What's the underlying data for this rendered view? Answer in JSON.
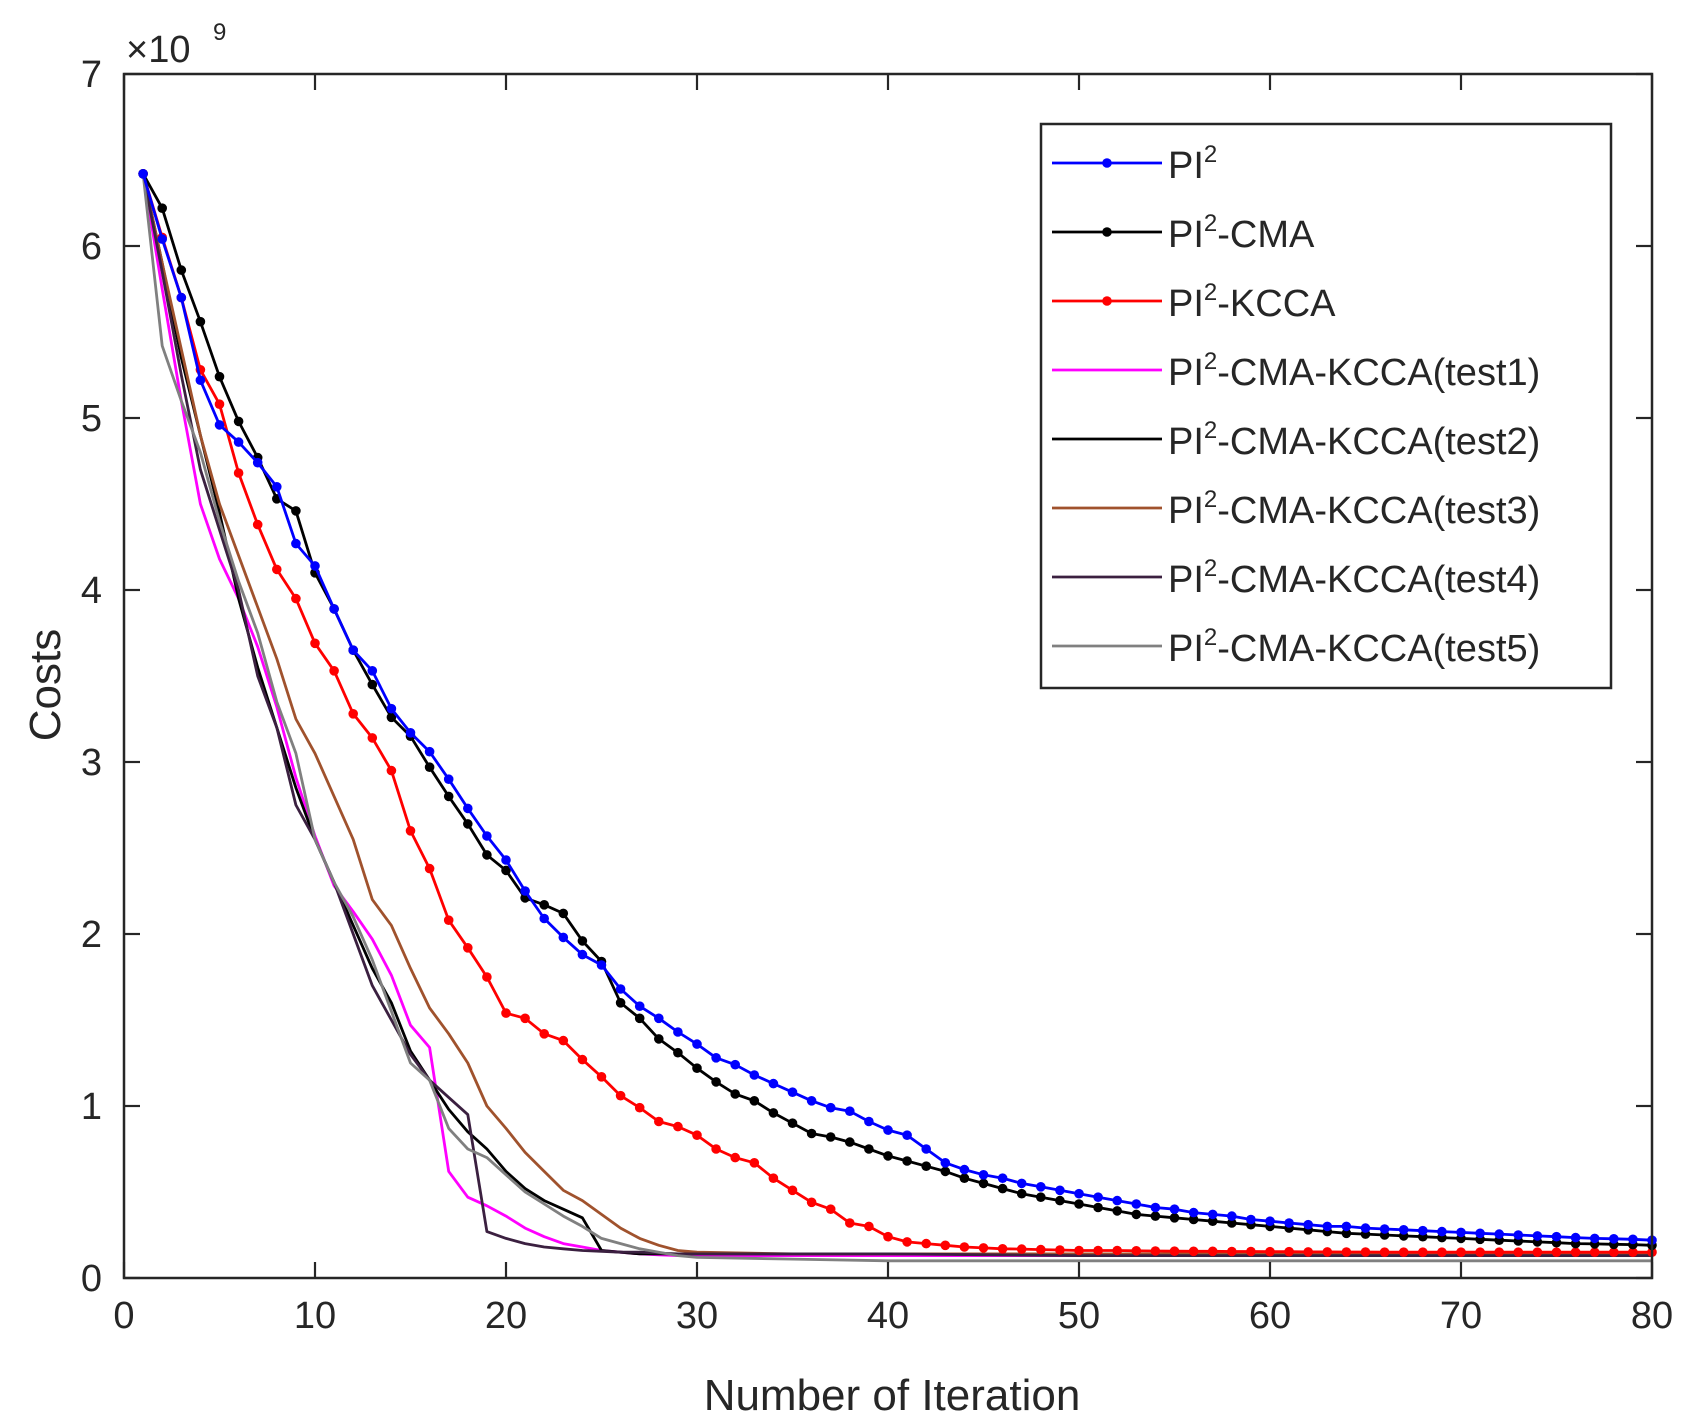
{
  "chart_data": {
    "type": "line",
    "title": "",
    "xlabel": "Number of Iteration",
    "ylabel": "Costs",
    "y_multiplier_label": "×10",
    "y_multiplier_exponent": "9",
    "xlim": [
      0,
      80
    ],
    "ylim": [
      0,
      7
    ],
    "xticks": [
      "0",
      "10",
      "20",
      "30",
      "40",
      "50",
      "60",
      "70",
      "80"
    ],
    "yticks": [
      "0",
      "1",
      "2",
      "3",
      "4",
      "5",
      "6",
      "7"
    ],
    "grid": false,
    "legend_position": "top-right",
    "units": "Costs ×10^9",
    "series": [
      {
        "name": "PI²-CMA-KCCA(test1)",
        "label_base": "PI",
        "label_sup": "2",
        "label_rest": "-CMA-KCCA(test1)",
        "color": "#ff00ff",
        "marker": "none",
        "x": [
          1,
          2,
          3,
          4,
          5,
          6,
          7,
          8,
          9,
          10,
          11,
          12,
          13,
          14,
          15,
          16,
          17,
          18,
          19,
          20,
          21,
          22,
          23,
          24,
          25,
          26,
          27,
          28,
          29,
          30,
          35,
          40,
          50,
          60,
          70,
          80
        ],
        "y": [
          6.42,
          5.75,
          5.1,
          4.5,
          4.18,
          3.95,
          3.67,
          3.32,
          2.91,
          2.57,
          2.28,
          2.13,
          1.97,
          1.76,
          1.47,
          1.34,
          0.62,
          0.47,
          0.42,
          0.36,
          0.29,
          0.24,
          0.2,
          0.18,
          0.16,
          0.15,
          0.14,
          0.135,
          0.13,
          0.13,
          0.13,
          0.13,
          0.13,
          0.13,
          0.13,
          0.13
        ]
      },
      {
        "name": "PI²-CMA-KCCA(test2)",
        "label_base": "PI",
        "label_sup": "2",
        "label_rest": "-CMA-KCCA(test2)",
        "color": "#000000",
        "marker": "none",
        "x": [
          1,
          2,
          3,
          4,
          5,
          6,
          7,
          8,
          9,
          10,
          11,
          12,
          13,
          14,
          15,
          16,
          17,
          18,
          19,
          20,
          21,
          22,
          23,
          24,
          25,
          26,
          27,
          28,
          29,
          30,
          35,
          40,
          50,
          60,
          70,
          80
        ],
        "y": [
          6.42,
          5.9,
          5.35,
          4.9,
          4.45,
          3.95,
          3.55,
          3.2,
          2.85,
          2.55,
          2.3,
          2.05,
          1.8,
          1.6,
          1.32,
          1.15,
          0.98,
          0.85,
          0.75,
          0.62,
          0.52,
          0.45,
          0.4,
          0.35,
          0.16,
          0.15,
          0.14,
          0.14,
          0.14,
          0.14,
          0.14,
          0.14,
          0.14,
          0.14,
          0.14,
          0.14
        ]
      },
      {
        "name": "PI²-CMA-KCCA(test3)",
        "label_base": "PI",
        "label_sup": "2",
        "label_rest": "-CMA-KCCA(test3)",
        "color": "#a0522d",
        "marker": "none",
        "x": [
          1,
          2,
          3,
          4,
          5,
          6,
          7,
          8,
          9,
          10,
          11,
          12,
          13,
          14,
          15,
          16,
          17,
          18,
          19,
          20,
          21,
          22,
          23,
          24,
          25,
          26,
          27,
          28,
          29,
          30,
          35,
          40,
          50,
          60,
          70,
          80
        ],
        "y": [
          6.42,
          5.9,
          5.4,
          4.9,
          4.5,
          4.2,
          3.9,
          3.6,
          3.25,
          3.05,
          2.8,
          2.55,
          2.2,
          2.05,
          1.8,
          1.57,
          1.42,
          1.25,
          1.0,
          0.87,
          0.73,
          0.62,
          0.51,
          0.45,
          0.37,
          0.29,
          0.23,
          0.19,
          0.16,
          0.15,
          0.14,
          0.14,
          0.14,
          0.14,
          0.14,
          0.14
        ]
      },
      {
        "name": "PI²-CMA-KCCA(test4)",
        "label_base": "PI",
        "label_sup": "2",
        "label_rest": "-CMA-KCCA(test4)",
        "color": "#3b2040",
        "marker": "none",
        "x": [
          1,
          2,
          3,
          4,
          5,
          6,
          7,
          8,
          9,
          10,
          11,
          12,
          13,
          14,
          15,
          16,
          17,
          18,
          19,
          20,
          21,
          22,
          23,
          24,
          25,
          26,
          27,
          28,
          29,
          30,
          35,
          40,
          50,
          60,
          70,
          80
        ],
        "y": [
          6.42,
          5.85,
          5.25,
          4.7,
          4.35,
          4.0,
          3.5,
          3.2,
          2.75,
          2.55,
          2.3,
          2.0,
          1.7,
          1.5,
          1.3,
          1.15,
          1.05,
          0.95,
          0.27,
          0.23,
          0.2,
          0.18,
          0.17,
          0.16,
          0.155,
          0.15,
          0.15,
          0.145,
          0.14,
          0.14,
          0.14,
          0.14,
          0.13,
          0.13,
          0.13,
          0.13
        ]
      },
      {
        "name": "PI²-CMA-KCCA(test5)",
        "label_base": "PI",
        "label_sup": "2",
        "label_rest": "-CMA-KCCA(test5)",
        "color": "#808080",
        "marker": "none",
        "x": [
          1,
          2,
          3,
          4,
          5,
          6,
          7,
          8,
          9,
          10,
          11,
          12,
          13,
          14,
          15,
          16,
          17,
          18,
          19,
          20,
          21,
          22,
          23,
          24,
          25,
          26,
          27,
          28,
          29,
          30,
          35,
          40,
          50,
          60,
          70,
          80
        ],
        "y": [
          6.42,
          5.42,
          5.1,
          4.8,
          4.4,
          4.05,
          3.75,
          3.35,
          3.05,
          2.55,
          2.3,
          2.1,
          1.85,
          1.55,
          1.25,
          1.15,
          0.87,
          0.75,
          0.7,
          0.6,
          0.5,
          0.43,
          0.36,
          0.3,
          0.23,
          0.2,
          0.17,
          0.15,
          0.13,
          0.12,
          0.11,
          0.1,
          0.1,
          0.1,
          0.1,
          0.1
        ]
      },
      {
        "name": "PI²-KCCA",
        "label_base": "PI",
        "label_sup": "2",
        "label_rest": "-KCCA",
        "color": "#ff0000",
        "marker": "dot",
        "x": [
          1,
          2,
          3,
          4,
          5,
          6,
          7,
          8,
          9,
          10,
          11,
          12,
          13,
          14,
          15,
          16,
          17,
          18,
          19,
          20,
          21,
          22,
          23,
          24,
          25,
          26,
          27,
          28,
          29,
          30,
          31,
          32,
          33,
          34,
          35,
          36,
          37,
          38,
          39,
          40,
          41,
          42,
          43,
          44,
          45,
          46,
          47,
          48,
          49,
          50,
          51,
          52,
          53,
          54,
          55,
          56,
          57,
          58,
          59,
          60,
          61,
          62,
          63,
          64,
          65,
          66,
          67,
          68,
          69,
          70,
          71,
          72,
          73,
          74,
          75,
          76,
          77,
          78,
          79,
          80
        ],
        "y": [
          6.42,
          6.05,
          5.7,
          5.28,
          5.08,
          4.68,
          4.38,
          4.12,
          3.95,
          3.69,
          3.53,
          3.28,
          3.14,
          2.95,
          2.6,
          2.38,
          2.08,
          1.92,
          1.75,
          1.54,
          1.51,
          1.42,
          1.38,
          1.27,
          1.17,
          1.06,
          0.99,
          0.91,
          0.88,
          0.83,
          0.75,
          0.7,
          0.67,
          0.58,
          0.51,
          0.44,
          0.4,
          0.32,
          0.3,
          0.24,
          0.21,
          0.2,
          0.19,
          0.18,
          0.175,
          0.17,
          0.168,
          0.165,
          0.163,
          0.16,
          0.16,
          0.16,
          0.158,
          0.157,
          0.156,
          0.155,
          0.155,
          0.154,
          0.154,
          0.153,
          0.153,
          0.152,
          0.152,
          0.151,
          0.151,
          0.15,
          0.15,
          0.15,
          0.15,
          0.15,
          0.15,
          0.15,
          0.15,
          0.15,
          0.15,
          0.15,
          0.15,
          0.15,
          0.15,
          0.15
        ]
      },
      {
        "name": "PI²-CMA",
        "label_base": "PI",
        "label_sup": "2",
        "label_rest": "-CMA",
        "color": "#000000",
        "marker": "dot",
        "x": [
          1,
          2,
          3,
          4,
          5,
          6,
          7,
          8,
          9,
          10,
          11,
          12,
          13,
          14,
          15,
          16,
          17,
          18,
          19,
          20,
          21,
          22,
          23,
          24,
          25,
          26,
          27,
          28,
          29,
          30,
          31,
          32,
          33,
          34,
          35,
          36,
          37,
          38,
          39,
          40,
          41,
          42,
          43,
          44,
          45,
          46,
          47,
          48,
          49,
          50,
          51,
          52,
          53,
          54,
          55,
          56,
          57,
          58,
          59,
          60,
          61,
          62,
          63,
          64,
          65,
          66,
          67,
          68,
          69,
          70,
          71,
          72,
          73,
          74,
          75,
          76,
          77,
          78,
          79,
          80
        ],
        "y": [
          6.42,
          6.22,
          5.86,
          5.56,
          5.24,
          4.98,
          4.77,
          4.53,
          4.46,
          4.1,
          3.89,
          3.65,
          3.45,
          3.26,
          3.15,
          2.97,
          2.8,
          2.64,
          2.46,
          2.37,
          2.21,
          2.17,
          2.12,
          1.96,
          1.84,
          1.6,
          1.51,
          1.39,
          1.31,
          1.22,
          1.14,
          1.07,
          1.03,
          0.96,
          0.9,
          0.84,
          0.82,
          0.79,
          0.75,
          0.71,
          0.68,
          0.65,
          0.62,
          0.58,
          0.55,
          0.52,
          0.49,
          0.47,
          0.45,
          0.43,
          0.41,
          0.39,
          0.37,
          0.36,
          0.35,
          0.34,
          0.33,
          0.32,
          0.31,
          0.3,
          0.29,
          0.28,
          0.27,
          0.26,
          0.255,
          0.25,
          0.245,
          0.24,
          0.235,
          0.23,
          0.225,
          0.22,
          0.215,
          0.21,
          0.205,
          0.2,
          0.198,
          0.196,
          0.194,
          0.19
        ]
      },
      {
        "name": "PI²",
        "label_base": "PI",
        "label_sup": "2",
        "label_rest": "",
        "color": "#0000ff",
        "marker": "dot",
        "x": [
          1,
          2,
          3,
          4,
          5,
          6,
          7,
          8,
          9,
          10,
          11,
          12,
          13,
          14,
          15,
          16,
          17,
          18,
          19,
          20,
          21,
          22,
          23,
          24,
          25,
          26,
          27,
          28,
          29,
          30,
          31,
          32,
          33,
          34,
          35,
          36,
          37,
          38,
          39,
          40,
          41,
          42,
          43,
          44,
          45,
          46,
          47,
          48,
          49,
          50,
          51,
          52,
          53,
          54,
          55,
          56,
          57,
          58,
          59,
          60,
          61,
          62,
          63,
          64,
          65,
          66,
          67,
          68,
          69,
          70,
          71,
          72,
          73,
          74,
          75,
          76,
          77,
          78,
          79,
          80
        ],
        "y": [
          6.42,
          6.04,
          5.7,
          5.22,
          4.96,
          4.86,
          4.74,
          4.6,
          4.27,
          4.14,
          3.89,
          3.65,
          3.53,
          3.31,
          3.17,
          3.06,
          2.9,
          2.73,
          2.57,
          2.43,
          2.25,
          2.09,
          1.98,
          1.88,
          1.82,
          1.68,
          1.58,
          1.51,
          1.43,
          1.36,
          1.28,
          1.24,
          1.18,
          1.13,
          1.08,
          1.03,
          0.99,
          0.97,
          0.91,
          0.86,
          0.83,
          0.75,
          0.67,
          0.63,
          0.6,
          0.58,
          0.55,
          0.53,
          0.51,
          0.49,
          0.47,
          0.45,
          0.43,
          0.41,
          0.4,
          0.38,
          0.37,
          0.36,
          0.34,
          0.33,
          0.32,
          0.31,
          0.3,
          0.3,
          0.29,
          0.285,
          0.28,
          0.275,
          0.27,
          0.265,
          0.26,
          0.255,
          0.25,
          0.245,
          0.24,
          0.235,
          0.23,
          0.228,
          0.225,
          0.22
        ]
      }
    ],
    "legend_order": [
      "PI²",
      "PI²-CMA",
      "PI²-KCCA",
      "PI²-CMA-KCCA(test1)",
      "PI²-CMA-KCCA(test2)",
      "PI²-CMA-KCCA(test3)",
      "PI²-CMA-KCCA(test4)",
      "PI²-CMA-KCCA(test5)"
    ]
  }
}
